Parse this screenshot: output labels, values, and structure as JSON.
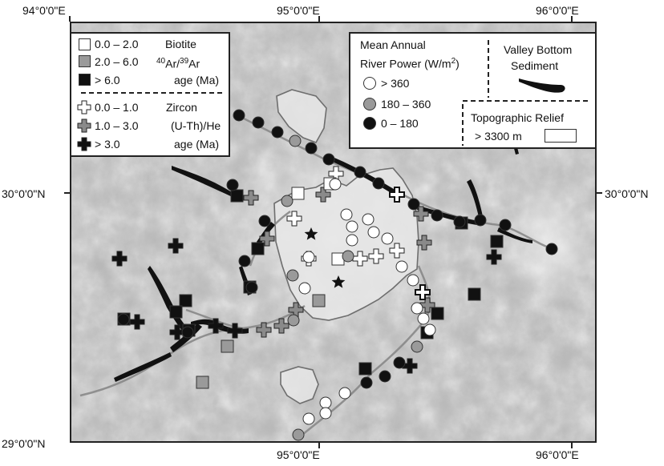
{
  "axes": {
    "top_labels": [
      "94°0'0\"E",
      "95°0'0\"E",
      "96°0'0\"E"
    ],
    "bottom_labels": [
      "29°0'0\"N",
      "95°0'0\"E",
      "96°0'0\"E"
    ],
    "left_label": "30°0'0\"N",
    "right_label": "30°0'0\"N"
  },
  "legend_age": {
    "biotite": {
      "ranges": [
        "0.0 – 2.0",
        "2.0 – 6.0",
        "> 6.0"
      ],
      "label_line1": "Biotite",
      "label_line2_sup1": "40",
      "label_line2_mid": "Ar/",
      "label_line2_sup2": "39",
      "label_line2_end": "Ar",
      "label_line3": "age (Ma)",
      "colors": [
        "#ffffff",
        "#9a9a9a",
        "#111111"
      ]
    },
    "zircon": {
      "ranges": [
        "0.0 – 1.0",
        "1.0 – 3.0",
        "> 3.0"
      ],
      "label_line1": "Zircon",
      "label_line2": "(U-Th)/He",
      "label_line3": "age (Ma)",
      "colors": [
        "#ffffff",
        "#8a8a8a",
        "#111111"
      ]
    }
  },
  "legend_river": {
    "title_line1": "Mean Annual",
    "title_line2": "River Power (W/m",
    "title_sup": "2",
    "title_end": ")",
    "classes": [
      "> 360",
      "180 – 360",
      "0 – 180"
    ],
    "colors": [
      "#ffffff",
      "#9a9a9a",
      "#111111"
    ],
    "valley_line1": "Valley Bottom",
    "valley_line2": "Sediment",
    "relief_line1": "Topographic Relief",
    "relief_line2": "> 3300 m"
  }
}
